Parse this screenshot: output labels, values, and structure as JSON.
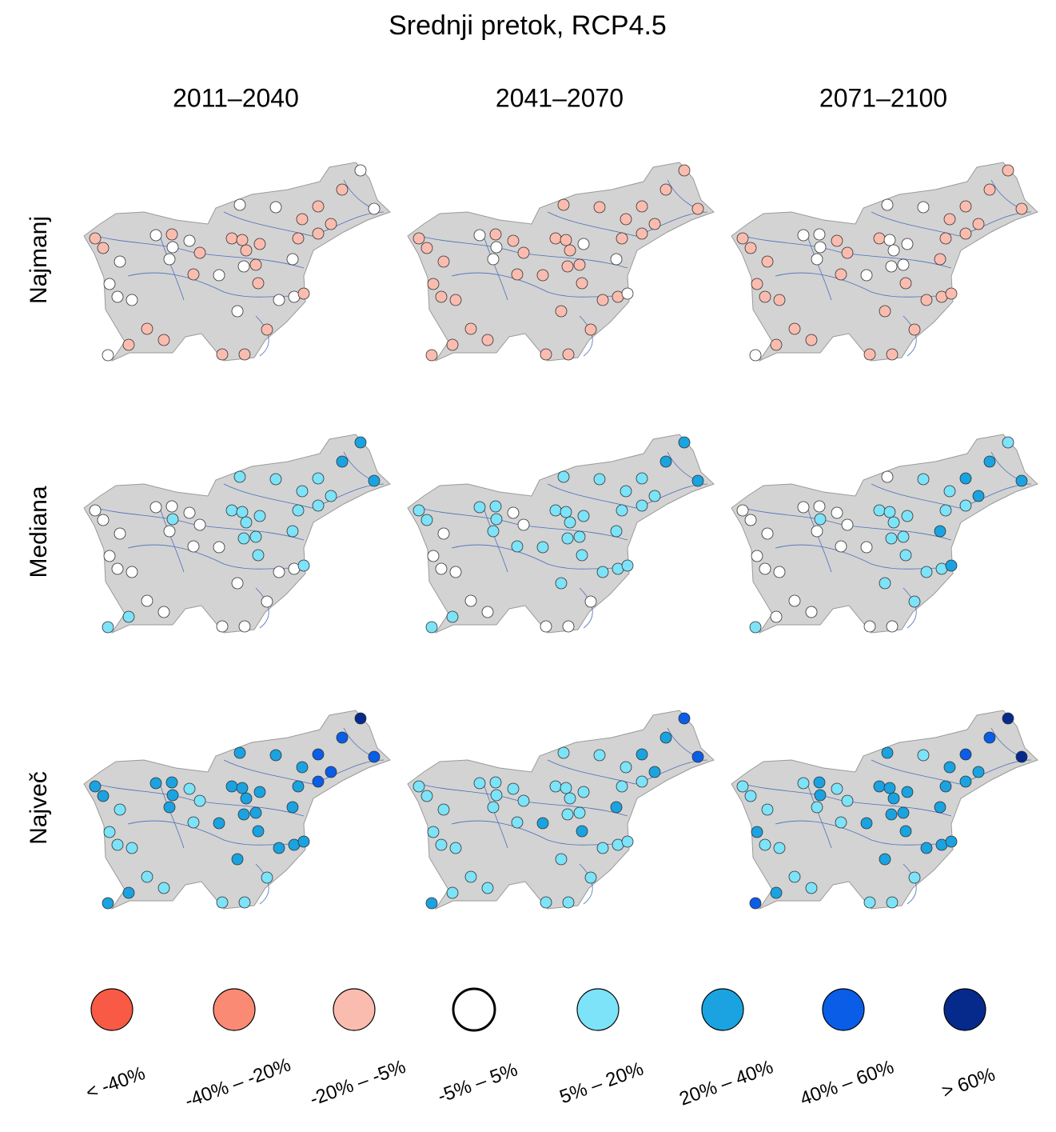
{
  "title": "Srednji pretok, RCP4.5",
  "columns": [
    "2011–2040",
    "2041–2070",
    "2071–2100"
  ],
  "rows": [
    "Najmanj",
    "Mediana",
    "Največ"
  ],
  "legend": [
    {
      "label": "< -40%",
      "color": "#f85a45"
    },
    {
      "label": "-40% – -20%",
      "color": "#fa8a74"
    },
    {
      "label": "-20% – -5%",
      "color": "#fbbcb0"
    },
    {
      "label": "-5% – 5%",
      "color": "#ffffff"
    },
    {
      "label": "5% – 20%",
      "color": "#7de3f8"
    },
    {
      "label": "20% – 40%",
      "color": "#1aa3e0"
    },
    {
      "label": "40% – 60%",
      "color": "#0a5de6"
    },
    {
      "label": "> 60%",
      "color": "#062a8c"
    }
  ],
  "panels": [
    [
      [
        3,
        2,
        3,
        3,
        3,
        2,
        2,
        2,
        2,
        2,
        2,
        2,
        3,
        2,
        3,
        3,
        2,
        2,
        2,
        2,
        2,
        3,
        3,
        3,
        3,
        2,
        2,
        3,
        2,
        3,
        3,
        3,
        3,
        3,
        2,
        3,
        2,
        2,
        2,
        2,
        3,
        2,
        2
      ],
      [
        2,
        2,
        2,
        2,
        2,
        2,
        2,
        2,
        2,
        2,
        2,
        2,
        3,
        2,
        2,
        3,
        2,
        2,
        2,
        3,
        2,
        3,
        2,
        3,
        2,
        2,
        2,
        2,
        2,
        2,
        2,
        2,
        2,
        2,
        3,
        2,
        2,
        2,
        2,
        2,
        2,
        2,
        2
      ],
      [
        2,
        2,
        2,
        3,
        3,
        2,
        2,
        2,
        2,
        2,
        2,
        2,
        3,
        3,
        2,
        3,
        2,
        2,
        3,
        3,
        3,
        2,
        2,
        3,
        3,
        3,
        2,
        3,
        2,
        2,
        2,
        2,
        2,
        2,
        2,
        2,
        2,
        2,
        2,
        2,
        3,
        2,
        2
      ]
    ],
    [
      [
        5,
        5,
        5,
        4,
        4,
        4,
        4,
        4,
        4,
        4,
        3,
        3,
        3,
        3,
        3,
        4,
        3,
        4,
        4,
        4,
        4,
        4,
        3,
        3,
        4,
        4,
        3,
        3,
        4,
        3,
        3,
        3,
        3,
        3,
        4,
        3,
        3,
        3,
        3,
        4,
        4,
        3,
        3
      ],
      [
        5,
        5,
        5,
        4,
        4,
        4,
        4,
        4,
        4,
        4,
        4,
        4,
        4,
        4,
        3,
        4,
        3,
        4,
        4,
        4,
        4,
        4,
        3,
        4,
        4,
        4,
        4,
        4,
        4,
        3,
        3,
        3,
        4,
        4,
        4,
        4,
        3,
        3,
        3,
        4,
        4,
        3,
        3
      ],
      [
        4,
        5,
        5,
        3,
        4,
        5,
        4,
        5,
        4,
        4,
        3,
        3,
        3,
        3,
        3,
        4,
        3,
        4,
        4,
        4,
        4,
        5,
        3,
        3,
        4,
        4,
        3,
        3,
        4,
        3,
        3,
        3,
        4,
        4,
        5,
        4,
        4,
        3,
        3,
        3,
        4,
        3,
        3
      ]
    ],
    [
      [
        7,
        6,
        6,
        5,
        5,
        6,
        5,
        6,
        6,
        5,
        5,
        5,
        5,
        5,
        4,
        5,
        4,
        5,
        5,
        5,
        5,
        5,
        4,
        5,
        5,
        5,
        4,
        5,
        5,
        4,
        4,
        4,
        5,
        5,
        5,
        5,
        4,
        4,
        4,
        5,
        5,
        4,
        4
      ],
      [
        6,
        5,
        6,
        4,
        4,
        5,
        4,
        5,
        4,
        4,
        4,
        4,
        4,
        4,
        4,
        4,
        4,
        4,
        4,
        4,
        4,
        5,
        4,
        4,
        4,
        4,
        4,
        5,
        5,
        4,
        4,
        4,
        4,
        4,
        4,
        4,
        4,
        4,
        4,
        4,
        5,
        4,
        4
      ],
      [
        7,
        6,
        7,
        5,
        4,
        6,
        5,
        5,
        5,
        5,
        4,
        4,
        4,
        5,
        4,
        5,
        4,
        5,
        5,
        5,
        5,
        5,
        4,
        4,
        5,
        5,
        4,
        5,
        5,
        5,
        4,
        4,
        5,
        5,
        5,
        5,
        4,
        4,
        4,
        5,
        6,
        4,
        4
      ]
    ]
  ]
}
